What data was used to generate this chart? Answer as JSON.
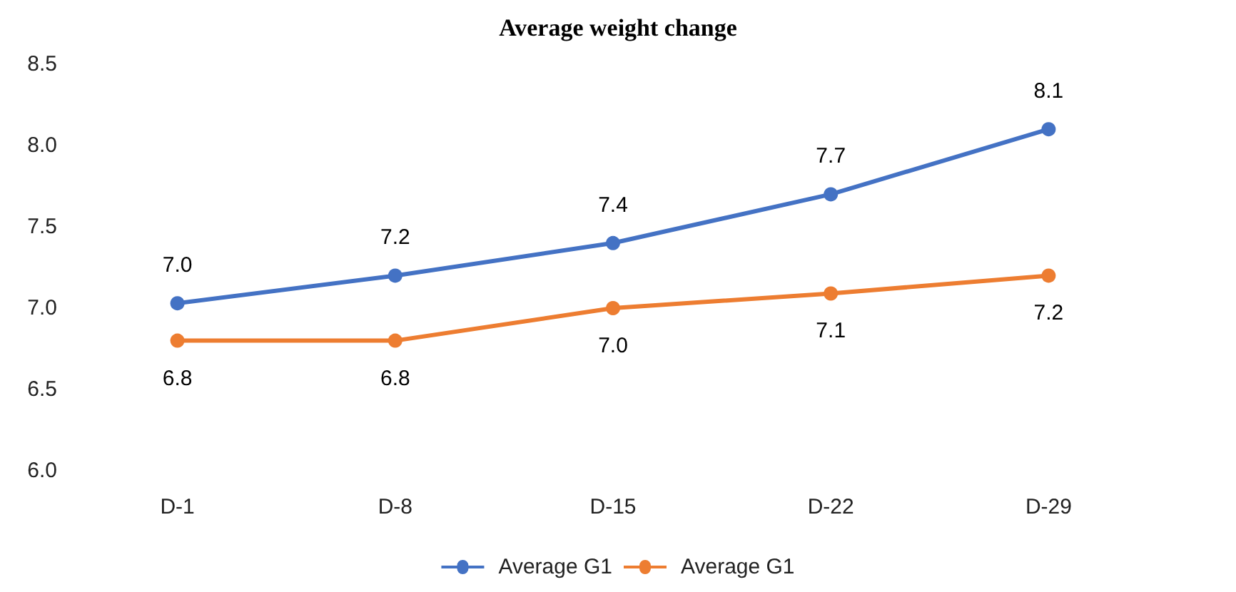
{
  "chart_data": {
    "type": "line",
    "title": "Average weight change",
    "categories": [
      "D-1",
      "D-8",
      "D-15",
      "D-22",
      "D-29"
    ],
    "series": [
      {
        "name": "Average G1",
        "color": "#4472c4",
        "values": [
          7.03,
          7.2,
          7.4,
          7.7,
          8.1
        ],
        "value_labels": [
          "7.0",
          "7.2",
          "7.4",
          "7.7",
          "8.1"
        ]
      },
      {
        "name": "Average G1",
        "color": "#ed7d31",
        "values": [
          6.8,
          6.8,
          7.0,
          7.09,
          7.2
        ],
        "value_labels": [
          "6.8",
          "6.8",
          "7.0",
          "7.1",
          "7.2"
        ]
      }
    ],
    "ylim": [
      6,
      8.5
    ],
    "yticks": [
      {
        "value": 6,
        "label": "6.0"
      },
      {
        "value": 6.5,
        "label": "6.5"
      },
      {
        "value": 7,
        "label": "7.0"
      },
      {
        "value": 7.5,
        "label": "7.5"
      },
      {
        "value": 8,
        "label": "8.0"
      },
      {
        "value": 8.5,
        "label": "8.5"
      }
    ],
    "grid": false,
    "legend": "bottom",
    "marker": "circle",
    "line_style": "solid"
  }
}
